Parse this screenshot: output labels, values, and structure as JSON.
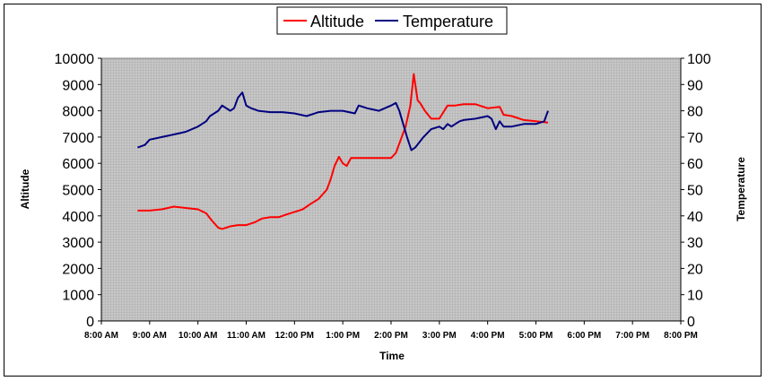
{
  "chart_data": {
    "type": "line",
    "xlabel": "Time",
    "ylabel": "Altitude",
    "y2label": "Temperature",
    "xlim": [
      8,
      20
    ],
    "ylim": [
      0,
      10000
    ],
    "y2lim": [
      0,
      100
    ],
    "x_ticks": [
      "8:00 AM",
      "9:00 AM",
      "10:00 AM",
      "11:00 AM",
      "12:00 PM",
      "1:00 PM",
      "2:00 PM",
      "3:00 PM",
      "4:00 PM",
      "5:00 PM",
      "6:00 PM",
      "7:00 PM",
      "8:00 PM"
    ],
    "y_ticks": [
      "0",
      "1000",
      "2000",
      "3000",
      "4000",
      "5000",
      "6000",
      "7000",
      "8000",
      "9000",
      "10000"
    ],
    "y2_ticks": [
      "0",
      "10",
      "20",
      "30",
      "40",
      "50",
      "60",
      "70",
      "80",
      "90",
      "100"
    ],
    "legend_position": "top-center",
    "grid": false,
    "series": [
      {
        "name": "Altitude",
        "axis": "left",
        "color": "#ff0000",
        "x": [
          8.75,
          9.0,
          9.25,
          9.5,
          9.75,
          10.0,
          10.17,
          10.3,
          10.42,
          10.5,
          10.67,
          10.83,
          11.0,
          11.17,
          11.33,
          11.5,
          11.67,
          11.83,
          12.0,
          12.17,
          12.33,
          12.5,
          12.67,
          12.75,
          12.83,
          12.92,
          13.0,
          13.08,
          13.17,
          13.25,
          13.5,
          13.75,
          14.0,
          14.1,
          14.2,
          14.3,
          14.4,
          14.47,
          14.55,
          14.6,
          14.7,
          14.83,
          15.0,
          15.17,
          15.25,
          15.33,
          15.5,
          15.75,
          16.0,
          16.25,
          16.33,
          16.5,
          16.75,
          17.0,
          17.25
        ],
        "values": [
          4200,
          4200,
          4250,
          4350,
          4300,
          4250,
          4100,
          3800,
          3550,
          3500,
          3600,
          3650,
          3650,
          3750,
          3900,
          3950,
          3950,
          4050,
          4150,
          4250,
          4450,
          4650,
          5000,
          5400,
          5900,
          6250,
          6000,
          5900,
          6200,
          6200,
          6200,
          6200,
          6200,
          6400,
          6900,
          7400,
          8200,
          9400,
          8400,
          8300,
          8000,
          7700,
          7700,
          8200,
          8200,
          8200,
          8250,
          8250,
          8100,
          8150,
          7850,
          7800,
          7650,
          7600,
          7550
        ]
      },
      {
        "name": "Temperature",
        "axis": "right",
        "color": "#000080",
        "x": [
          8.75,
          8.9,
          9.0,
          9.25,
          9.5,
          9.75,
          10.0,
          10.17,
          10.25,
          10.42,
          10.5,
          10.67,
          10.75,
          10.83,
          10.92,
          11.0,
          11.1,
          11.25,
          11.5,
          11.75,
          12.0,
          12.25,
          12.5,
          12.75,
          13.0,
          13.25,
          13.33,
          13.5,
          13.75,
          14.0,
          14.1,
          14.17,
          14.25,
          14.33,
          14.42,
          14.5,
          14.67,
          14.83,
          15.0,
          15.08,
          15.17,
          15.25,
          15.33,
          15.42,
          15.5,
          15.75,
          16.0,
          16.08,
          16.17,
          16.25,
          16.33,
          16.5,
          16.75,
          17.0,
          17.17,
          17.25
        ],
        "values": [
          66,
          67,
          69,
          70,
          71,
          72,
          74,
          76,
          78,
          80,
          82,
          80,
          81,
          85,
          87,
          82,
          81,
          80,
          79.5,
          79.5,
          79,
          78,
          79.5,
          80,
          80,
          79,
          82,
          81,
          80,
          82,
          83,
          80,
          75,
          70,
          65,
          66,
          70,
          73,
          74,
          73,
          75,
          74,
          75,
          76,
          76.5,
          77,
          78,
          77,
          73,
          76,
          74,
          74,
          75,
          75,
          76,
          80
        ]
      }
    ]
  }
}
